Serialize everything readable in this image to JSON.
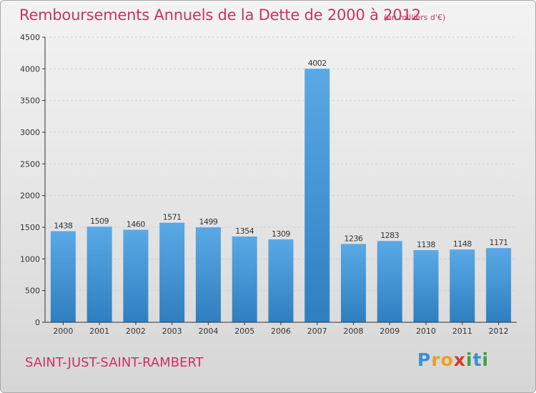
{
  "header": {
    "title": "Remboursements Annuels de la Dette de 2000 à 2012",
    "unit_note": "(en milliers d'€)"
  },
  "footer": {
    "commune": "SAINT-JUST-SAINT-RAMBERT",
    "logo": {
      "p": "P",
      "r": "r",
      "o": "o",
      "x": "x",
      "i": "i",
      "t": "t",
      "i2": "i"
    }
  },
  "colors": {
    "title": "#c83366",
    "bar_top": "#5aa9e6",
    "bar_bottom": "#2f7fc0",
    "axis": "#333333",
    "grid": "#d0d0d0"
  },
  "chart_data": {
    "type": "bar",
    "title": "Remboursements Annuels de la Dette de 2000 à 2012",
    "subtitle": "(en milliers d'€)",
    "xlabel": "",
    "ylabel": "",
    "categories": [
      "2000",
      "2001",
      "2002",
      "2003",
      "2004",
      "2005",
      "2006",
      "2007",
      "2008",
      "2009",
      "2010",
      "2011",
      "2012"
    ],
    "values": [
      1438,
      1509,
      1460,
      1571,
      1499,
      1354,
      1309,
      4002,
      1236,
      1283,
      1138,
      1148,
      1171
    ],
    "ylim": [
      0,
      4500
    ],
    "yticks": [
      "0",
      "500",
      "1000",
      "1500",
      "2000",
      "2500",
      "3000",
      "3500",
      "4000",
      "4500"
    ],
    "grid": true,
    "legend": "none"
  }
}
